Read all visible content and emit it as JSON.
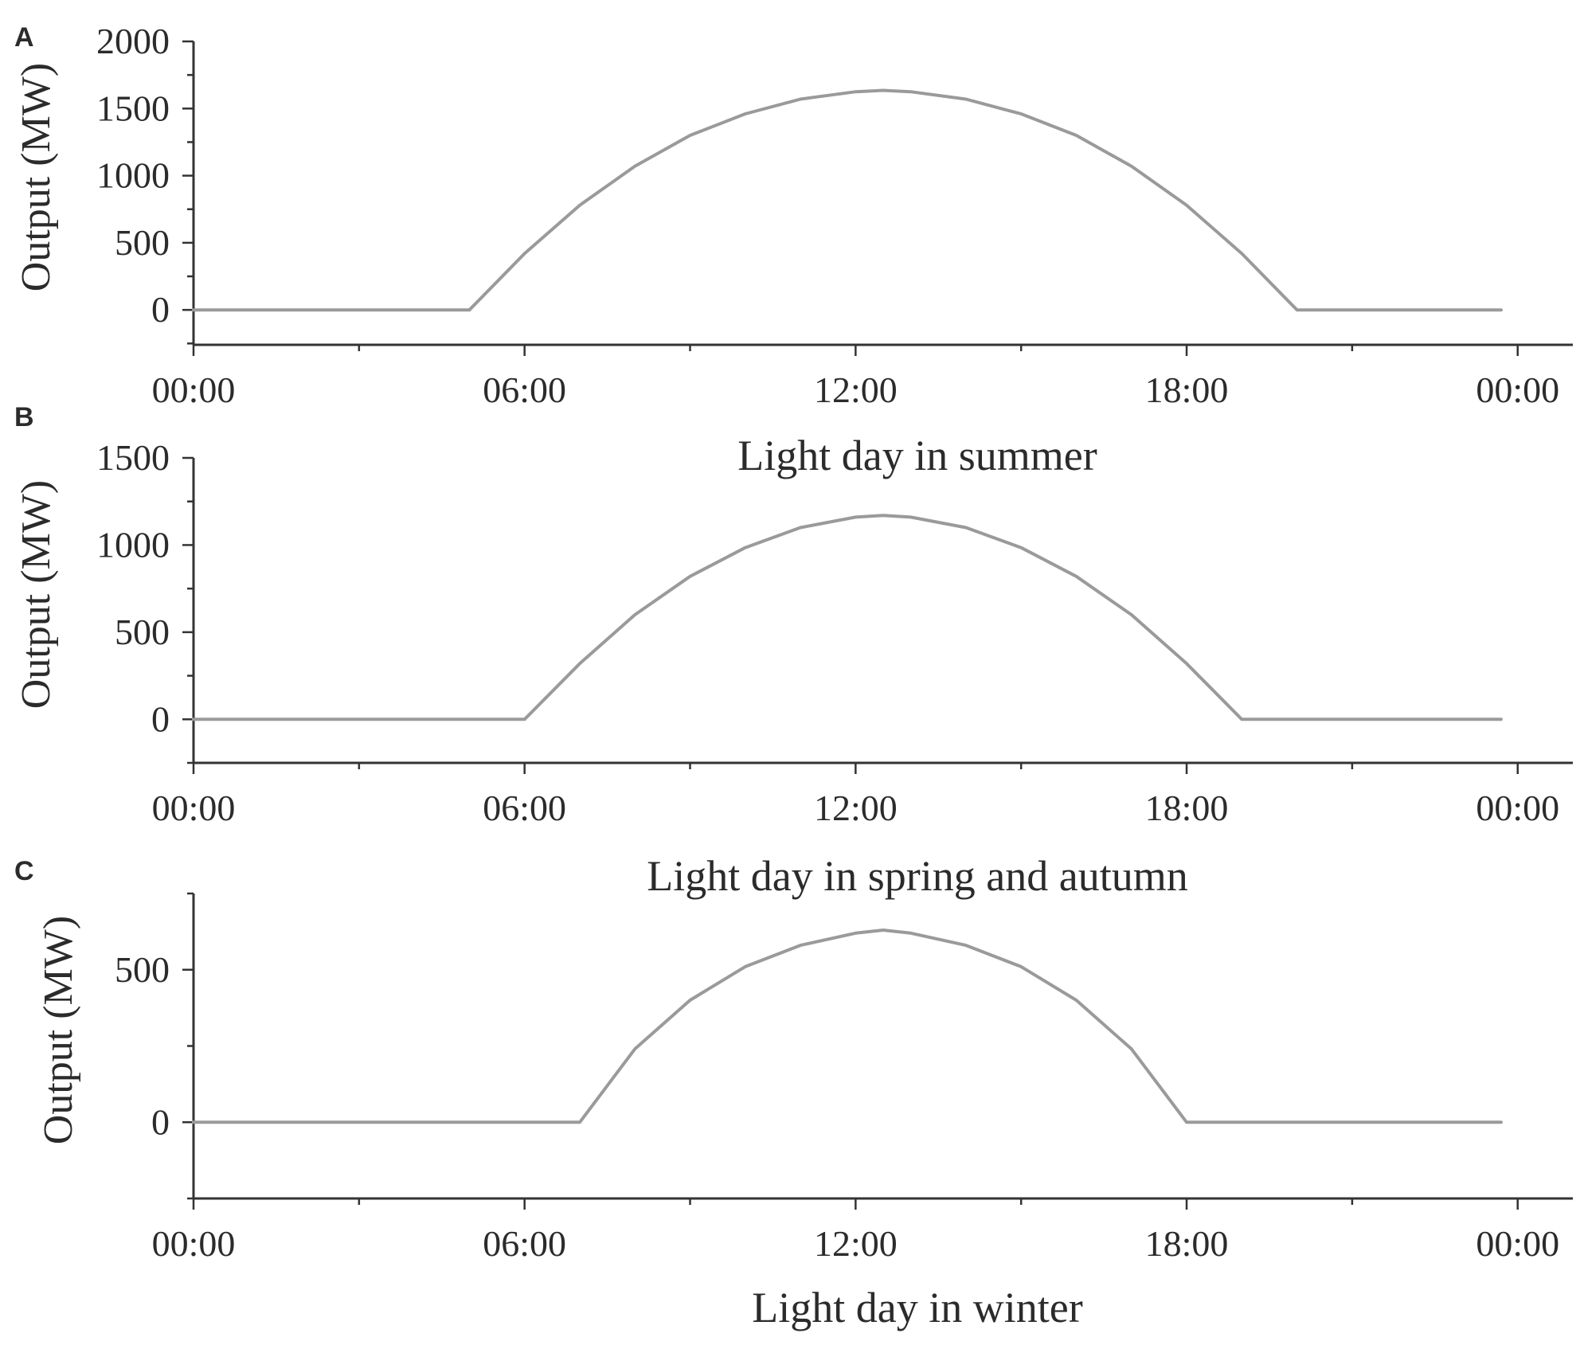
{
  "colors": {
    "axis": "#333333",
    "series": "#9a9a9a",
    "text": "#2b2b2b"
  },
  "chart_data": [
    {
      "type": "line",
      "panel_label": "A",
      "xlabel": "Light day in summer",
      "ylabel": "Output (MW)",
      "x_tick_labels": [
        "00:00",
        "06:00",
        "12:00",
        "18:00",
        "00:00"
      ],
      "x_tick_values": [
        0,
        6,
        12,
        18,
        24
      ],
      "y_ticks": [
        0,
        500,
        1000,
        1500,
        2000
      ],
      "ylim": [
        -260,
        2000
      ],
      "xlim": [
        0,
        25
      ],
      "grid": false,
      "series": [
        {
          "x": [
            0,
            5,
            6,
            7,
            8,
            9,
            10,
            11,
            12,
            12.5,
            13,
            14,
            15,
            16,
            17,
            18,
            19,
            20,
            23.7
          ],
          "y": [
            0,
            0,
            420,
            780,
            1070,
            1300,
            1460,
            1570,
            1625,
            1635,
            1625,
            1570,
            1460,
            1300,
            1070,
            780,
            420,
            0,
            0
          ]
        }
      ]
    },
    {
      "type": "line",
      "panel_label": "B",
      "xlabel": "Light day in spring and autumn",
      "ylabel": "Output (MW)",
      "x_tick_labels": [
        "00:00",
        "06:00",
        "12:00",
        "18:00",
        "00:00"
      ],
      "x_tick_values": [
        0,
        6,
        12,
        18,
        24
      ],
      "y_ticks": [
        0,
        500,
        1000,
        1500
      ],
      "ylim": [
        -250,
        1500
      ],
      "xlim": [
        0,
        25
      ],
      "grid": false,
      "series": [
        {
          "x": [
            0,
            6,
            7,
            8,
            9,
            10,
            11,
            12,
            12.5,
            13,
            14,
            15,
            16,
            17,
            18,
            19,
            23.7
          ],
          "y": [
            0,
            0,
            320,
            600,
            820,
            985,
            1100,
            1160,
            1170,
            1160,
            1100,
            985,
            820,
            600,
            320,
            0,
            0
          ]
        }
      ]
    },
    {
      "type": "line",
      "panel_label": "C",
      "xlabel": "Light day in winter",
      "ylabel": "Output (MW)",
      "x_tick_labels": [
        "00:00",
        "06:00",
        "12:00",
        "18:00",
        "00:00"
      ],
      "x_tick_values": [
        0,
        6,
        12,
        18,
        24
      ],
      "y_ticks": [
        0,
        500
      ],
      "ylim": [
        -250,
        750
      ],
      "xlim": [
        0,
        25
      ],
      "grid": false,
      "series": [
        {
          "x": [
            0,
            7,
            8,
            9,
            10,
            11,
            12,
            12.5,
            13,
            14,
            15,
            16,
            17,
            18,
            23.7
          ],
          "y": [
            0,
            0,
            240,
            400,
            510,
            580,
            620,
            630,
            620,
            580,
            510,
            400,
            240,
            0,
            0
          ]
        }
      ]
    }
  ]
}
